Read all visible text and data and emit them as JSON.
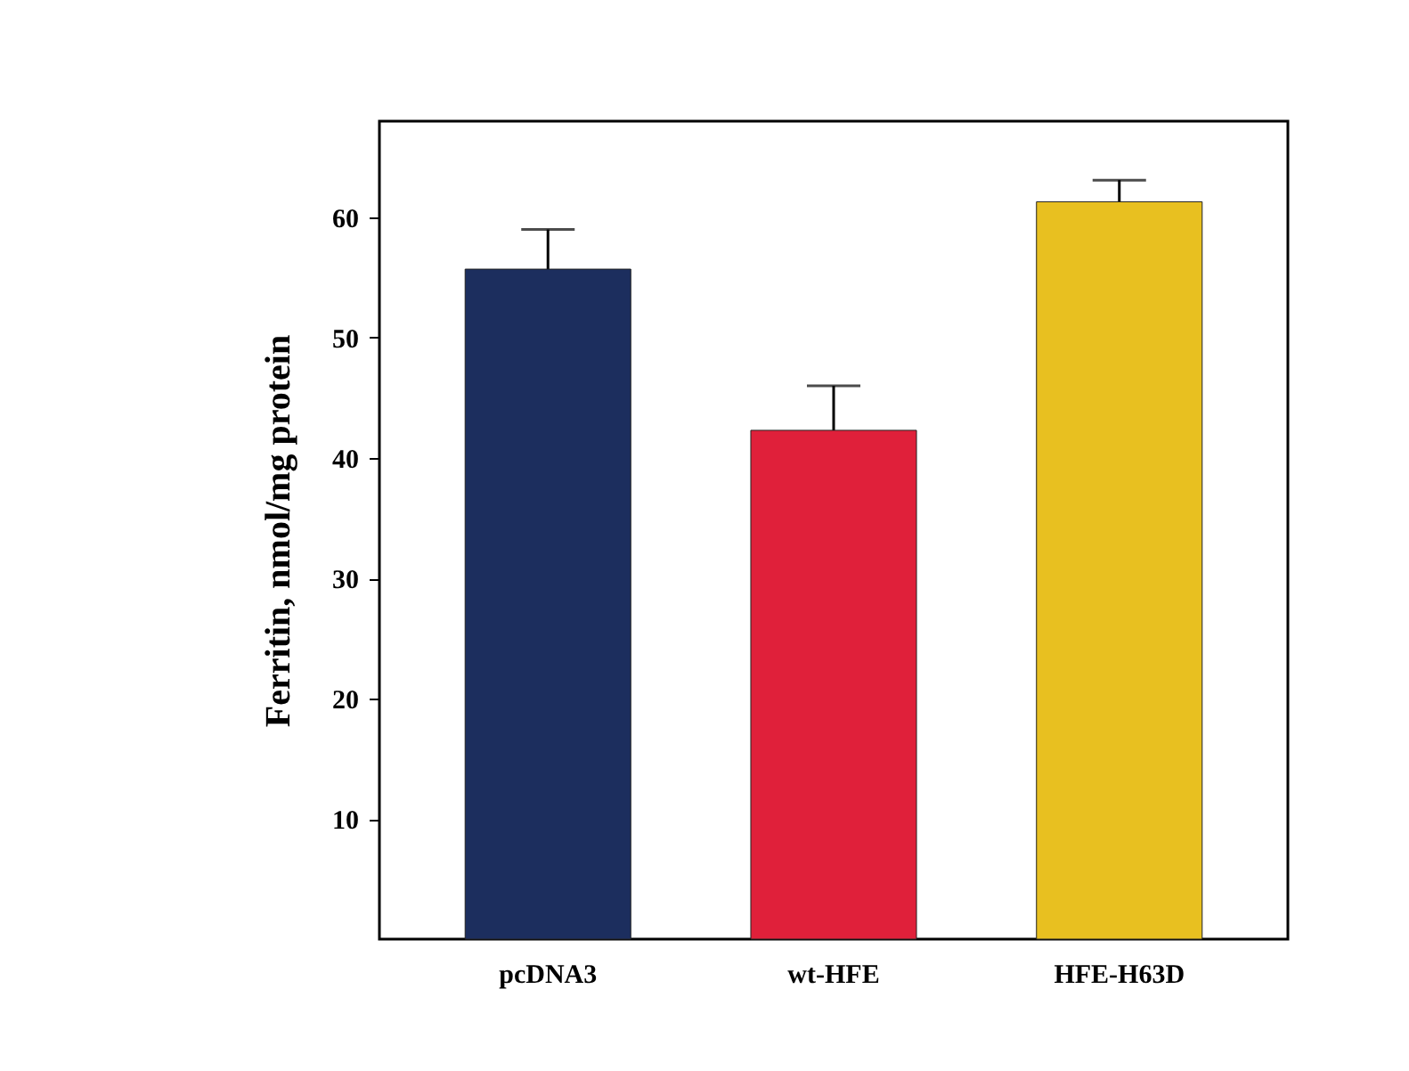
{
  "chart_data": {
    "type": "bar",
    "ylabel": "Ferritin, nmol/mg protein",
    "categories": [
      "pcDNA3",
      "wt-HFE",
      "HFE-H63D"
    ],
    "values": [
      55.7,
      42.3,
      61.3
    ],
    "errors": [
      3.3,
      3.7,
      1.8
    ],
    "colors": [
      "#1c2e5e",
      "#e0203a",
      "#e8c020"
    ],
    "ylim": [
      0,
      68
    ],
    "yticks": [
      10,
      20,
      30,
      40,
      50,
      60
    ],
    "grid": false,
    "legend": false
  }
}
